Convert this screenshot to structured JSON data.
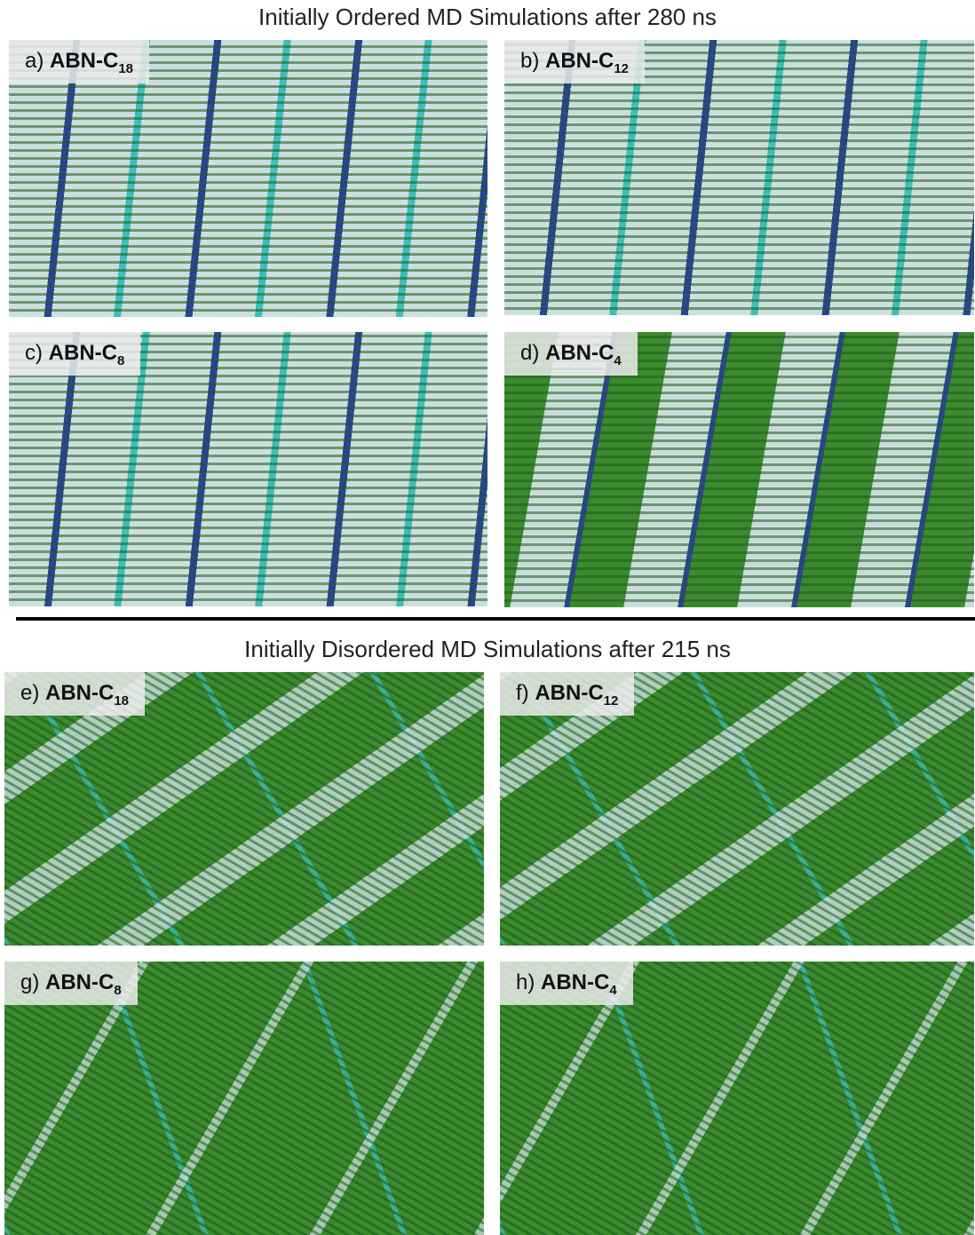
{
  "sections": [
    {
      "title": "Initially Ordered MD Simulations after 280 ns",
      "panels": [
        {
          "letter": "a)",
          "name": "ABN-C",
          "subscript": "18"
        },
        {
          "letter": "b)",
          "name": "ABN-C",
          "subscript": "12"
        },
        {
          "letter": "c)",
          "name": "ABN-C",
          "subscript": "8"
        },
        {
          "letter": "d)",
          "name": "ABN-C",
          "subscript": "4"
        }
      ]
    },
    {
      "title": "Initially Disordered MD Simulations after 215 ns",
      "panels": [
        {
          "letter": "e)",
          "name": "ABN-C",
          "subscript": "18"
        },
        {
          "letter": "f)",
          "name": "ABN-C",
          "subscript": "12"
        },
        {
          "letter": "g)",
          "name": "ABN-C",
          "subscript": "8"
        },
        {
          "letter": "h)",
          "name": "ABN-C",
          "subscript": "4"
        }
      ]
    }
  ]
}
